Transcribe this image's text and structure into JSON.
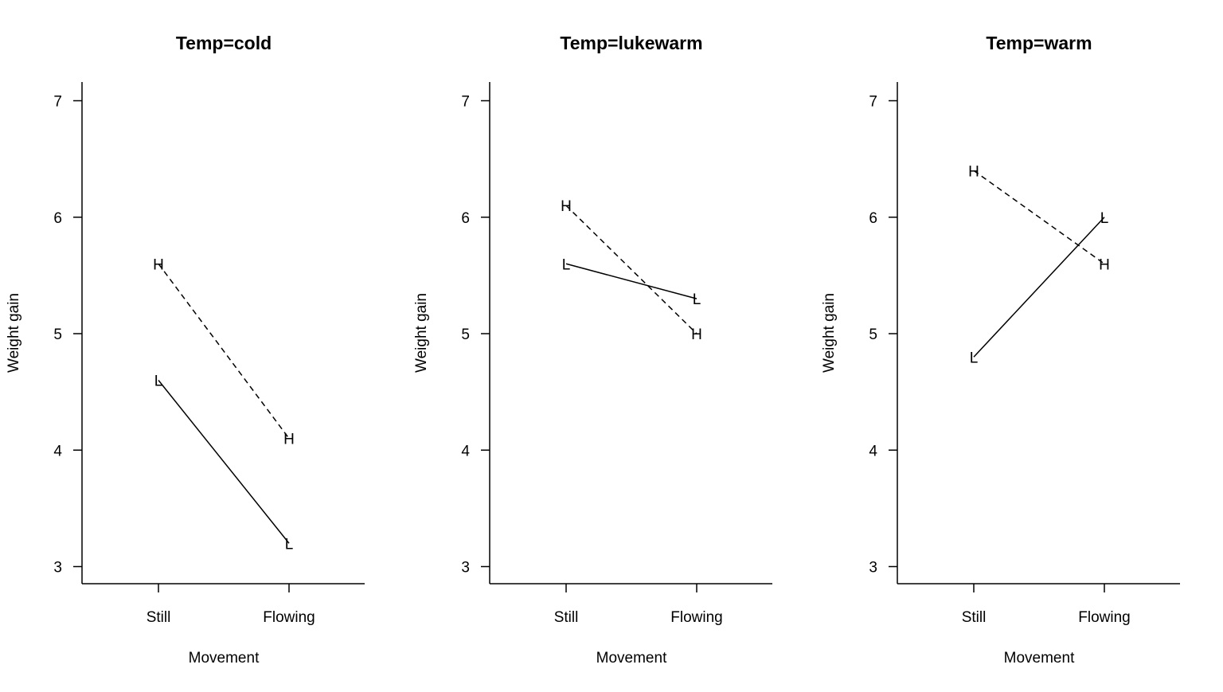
{
  "chart_data": [
    {
      "type": "line",
      "title": "Temp=cold",
      "xlabel": "Movement",
      "ylabel": "Weight gain",
      "categories": [
        "Still",
        "Flowing"
      ],
      "ylim": [
        2.85,
        7.15
      ],
      "yticks": [
        "3",
        "4",
        "5",
        "6",
        "7"
      ],
      "grid": false,
      "series": [
        {
          "name": "L",
          "values": [
            4.6,
            3.2
          ],
          "linestyle": "solid"
        },
        {
          "name": "H",
          "values": [
            5.6,
            4.1
          ],
          "linestyle": "dashed"
        }
      ]
    },
    {
      "type": "line",
      "title": "Temp=lukewarm",
      "xlabel": "Movement",
      "ylabel": "Weight gain",
      "categories": [
        "Still",
        "Flowing"
      ],
      "ylim": [
        2.85,
        7.15
      ],
      "yticks": [
        "3",
        "4",
        "5",
        "6",
        "7"
      ],
      "grid": false,
      "series": [
        {
          "name": "L",
          "values": [
            5.6,
            5.3
          ],
          "linestyle": "solid"
        },
        {
          "name": "H",
          "values": [
            6.1,
            5.0
          ],
          "linestyle": "dashed"
        }
      ]
    },
    {
      "type": "line",
      "title": "Temp=warm",
      "xlabel": "Movement",
      "ylabel": "Weight gain",
      "categories": [
        "Still",
        "Flowing"
      ],
      "ylim": [
        2.85,
        7.15
      ],
      "yticks": [
        "3",
        "4",
        "5",
        "6",
        "7"
      ],
      "grid": false,
      "series": [
        {
          "name": "L",
          "values": [
            4.8,
            6.0
          ],
          "linestyle": "solid"
        },
        {
          "name": "H",
          "values": [
            6.4,
            5.6
          ],
          "linestyle": "dashed"
        }
      ]
    }
  ]
}
